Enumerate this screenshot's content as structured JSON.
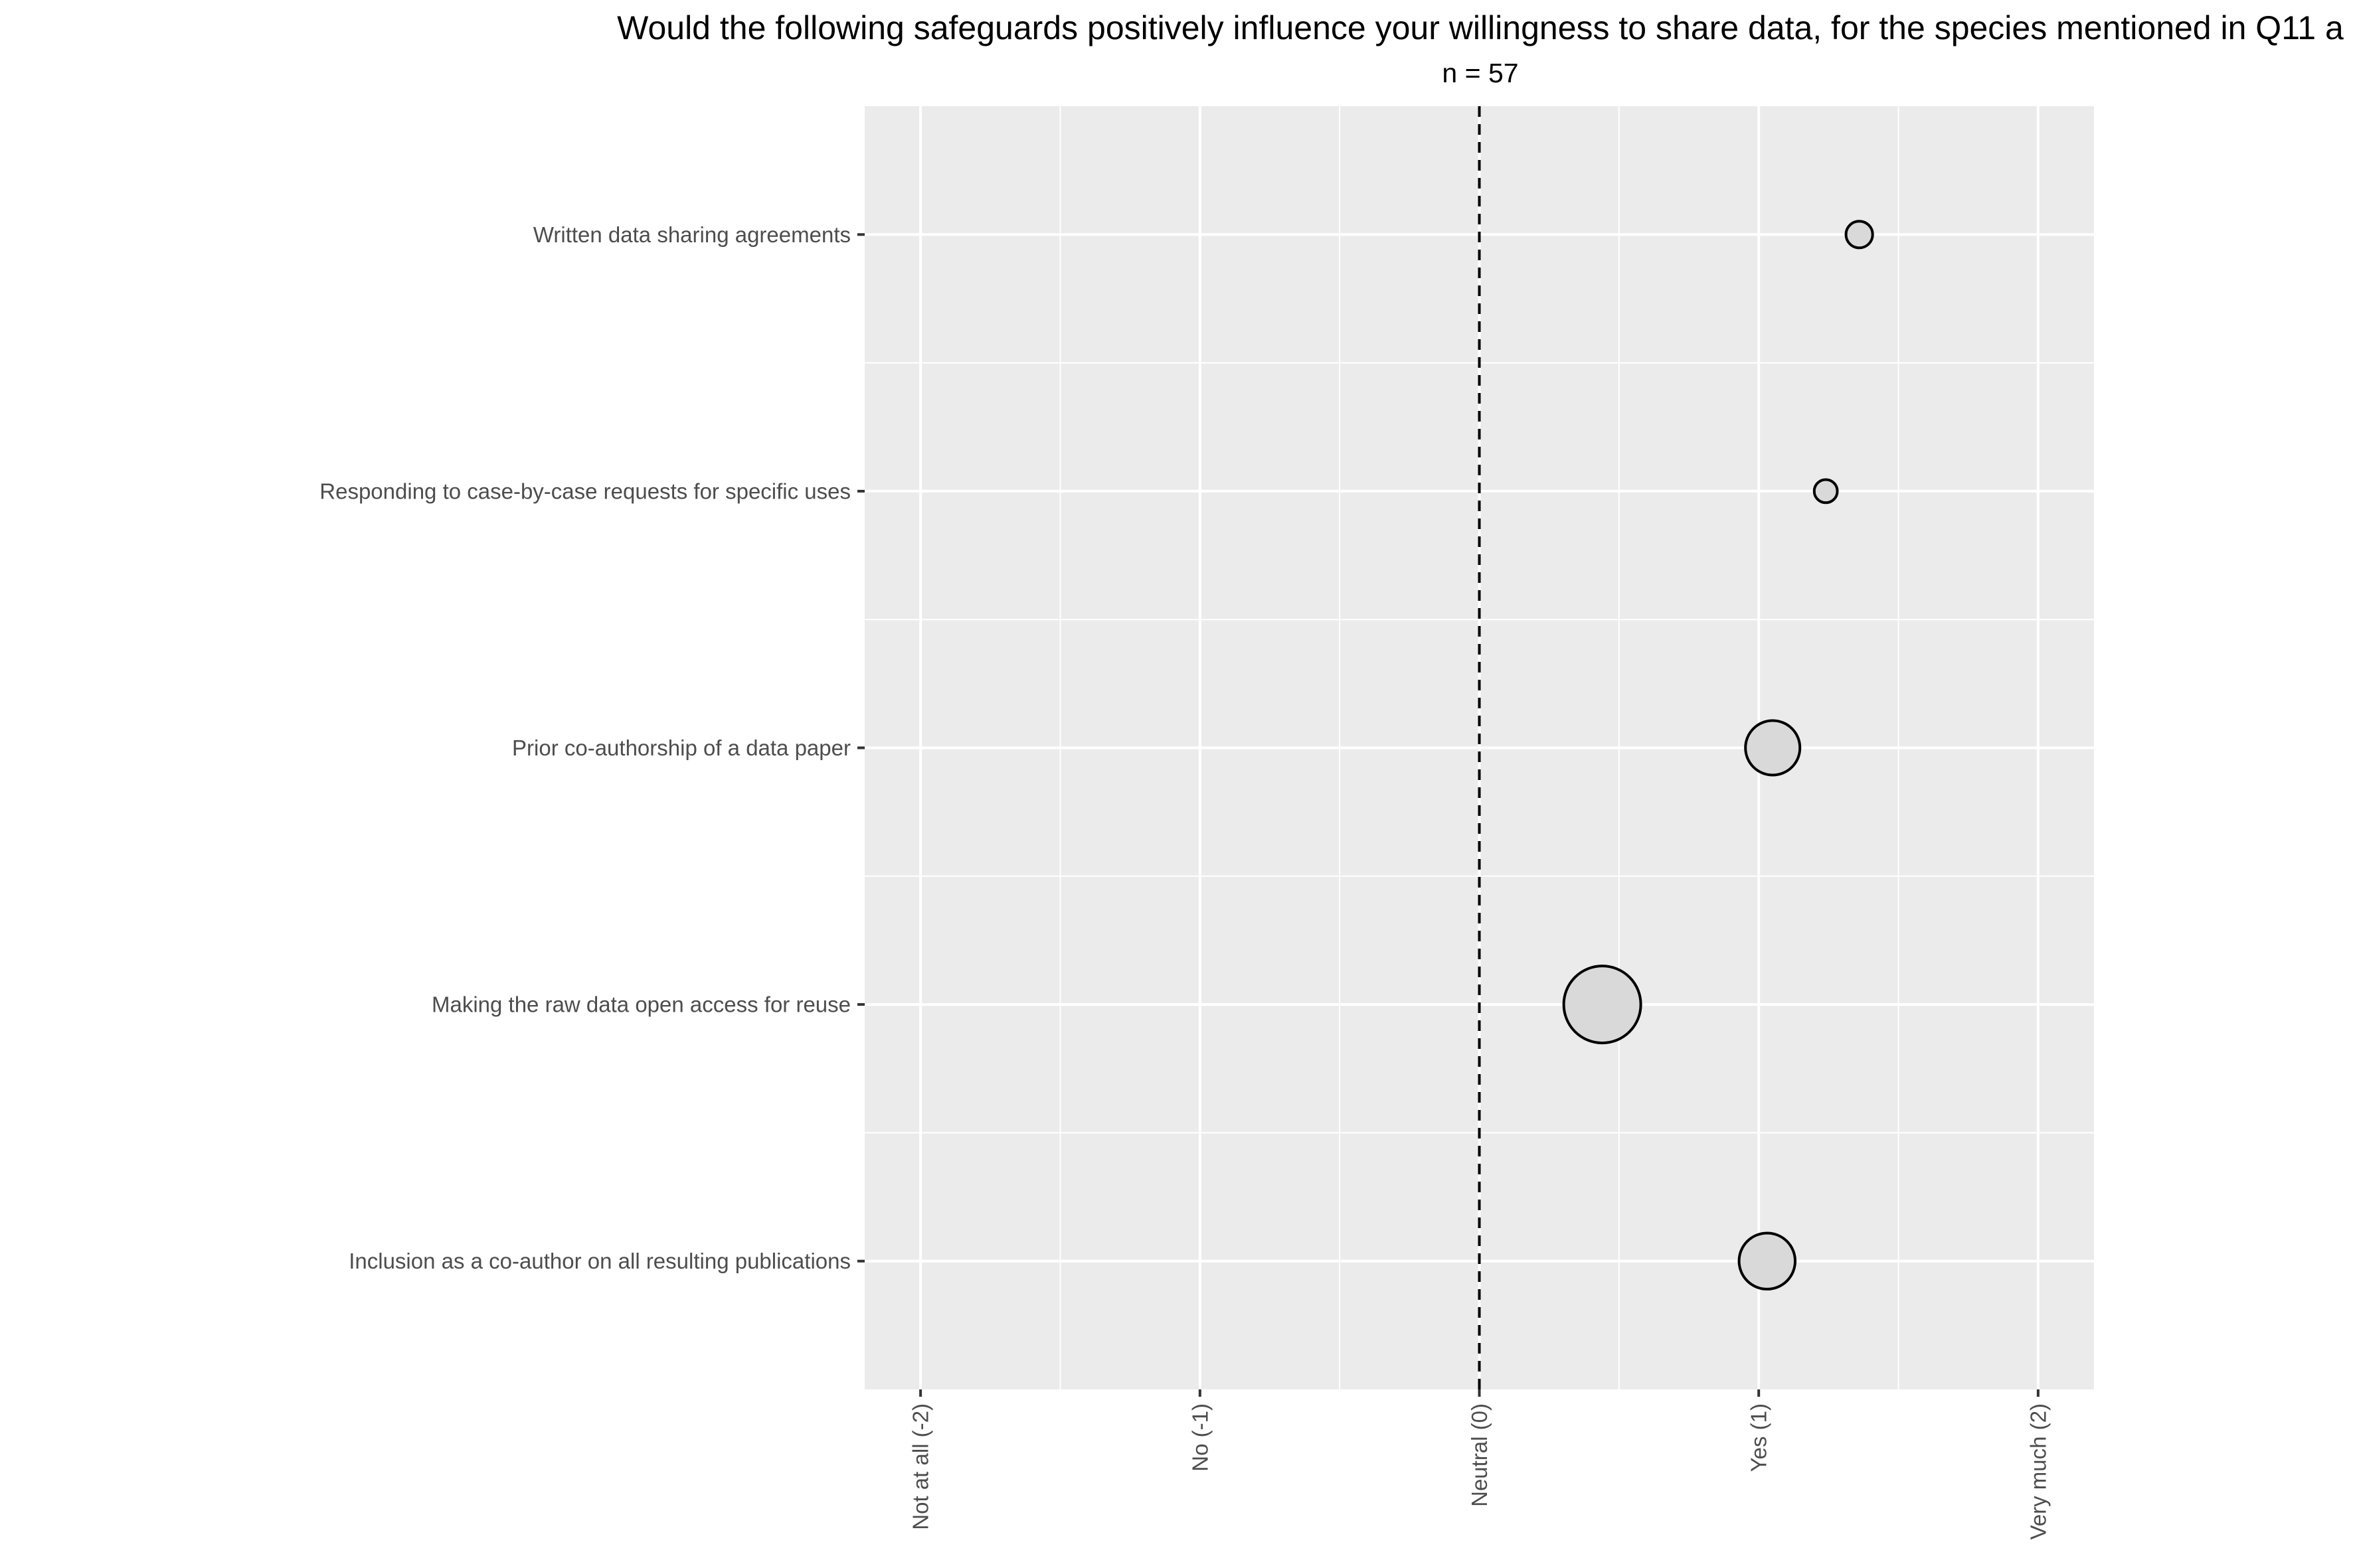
{
  "chart_data": {
    "type": "scatter",
    "title": "Would the following safeguards positively influence your willingness to share data, for the species mentioned in Q11 a",
    "subtitle": "n = 57",
    "xlabel": "",
    "ylabel": "",
    "xlim": [
      -2.2,
      2.2
    ],
    "x_ticks": [
      {
        "value": -2,
        "label": "Not at all (-2)"
      },
      {
        "value": -1,
        "label": "No (-1)"
      },
      {
        "value": 0,
        "label": "Neutral (0)"
      },
      {
        "value": 1,
        "label": "Yes (1)"
      },
      {
        "value": 2,
        "label": "Very much (2)"
      }
    ],
    "categories": [
      "Written data sharing agreements",
      "Responding to case-by-case requests for specific uses",
      "Prior co-authorship of a data paper",
      "Making the raw data open access for reuse",
      "Inclusion as a co-author on all resulting publications"
    ],
    "points": [
      {
        "category": "Written data sharing agreements",
        "x": 1.36,
        "size": 0.12
      },
      {
        "category": "Responding to case-by-case requests for specific uses",
        "x": 1.24,
        "size": 0.09
      },
      {
        "category": "Prior co-authorship of a data paper",
        "x": 1.05,
        "size": 0.5
      },
      {
        "category": "Making the raw data open access for reuse",
        "x": 0.44,
        "size": 1.0
      },
      {
        "category": "Inclusion as a co-author on all resulting publications",
        "x": 1.03,
        "size": 0.53
      }
    ],
    "reference_line": {
      "x": 0,
      "style": "dashed"
    },
    "grid": true,
    "legend": "none",
    "colors": {
      "panel": "#EBEBEB",
      "grid": "#FFFFFF",
      "point_fill": "#D9D9D9",
      "point_stroke": "#000000",
      "tick_text": "#4D4D4D",
      "title_text": "#000000"
    }
  }
}
